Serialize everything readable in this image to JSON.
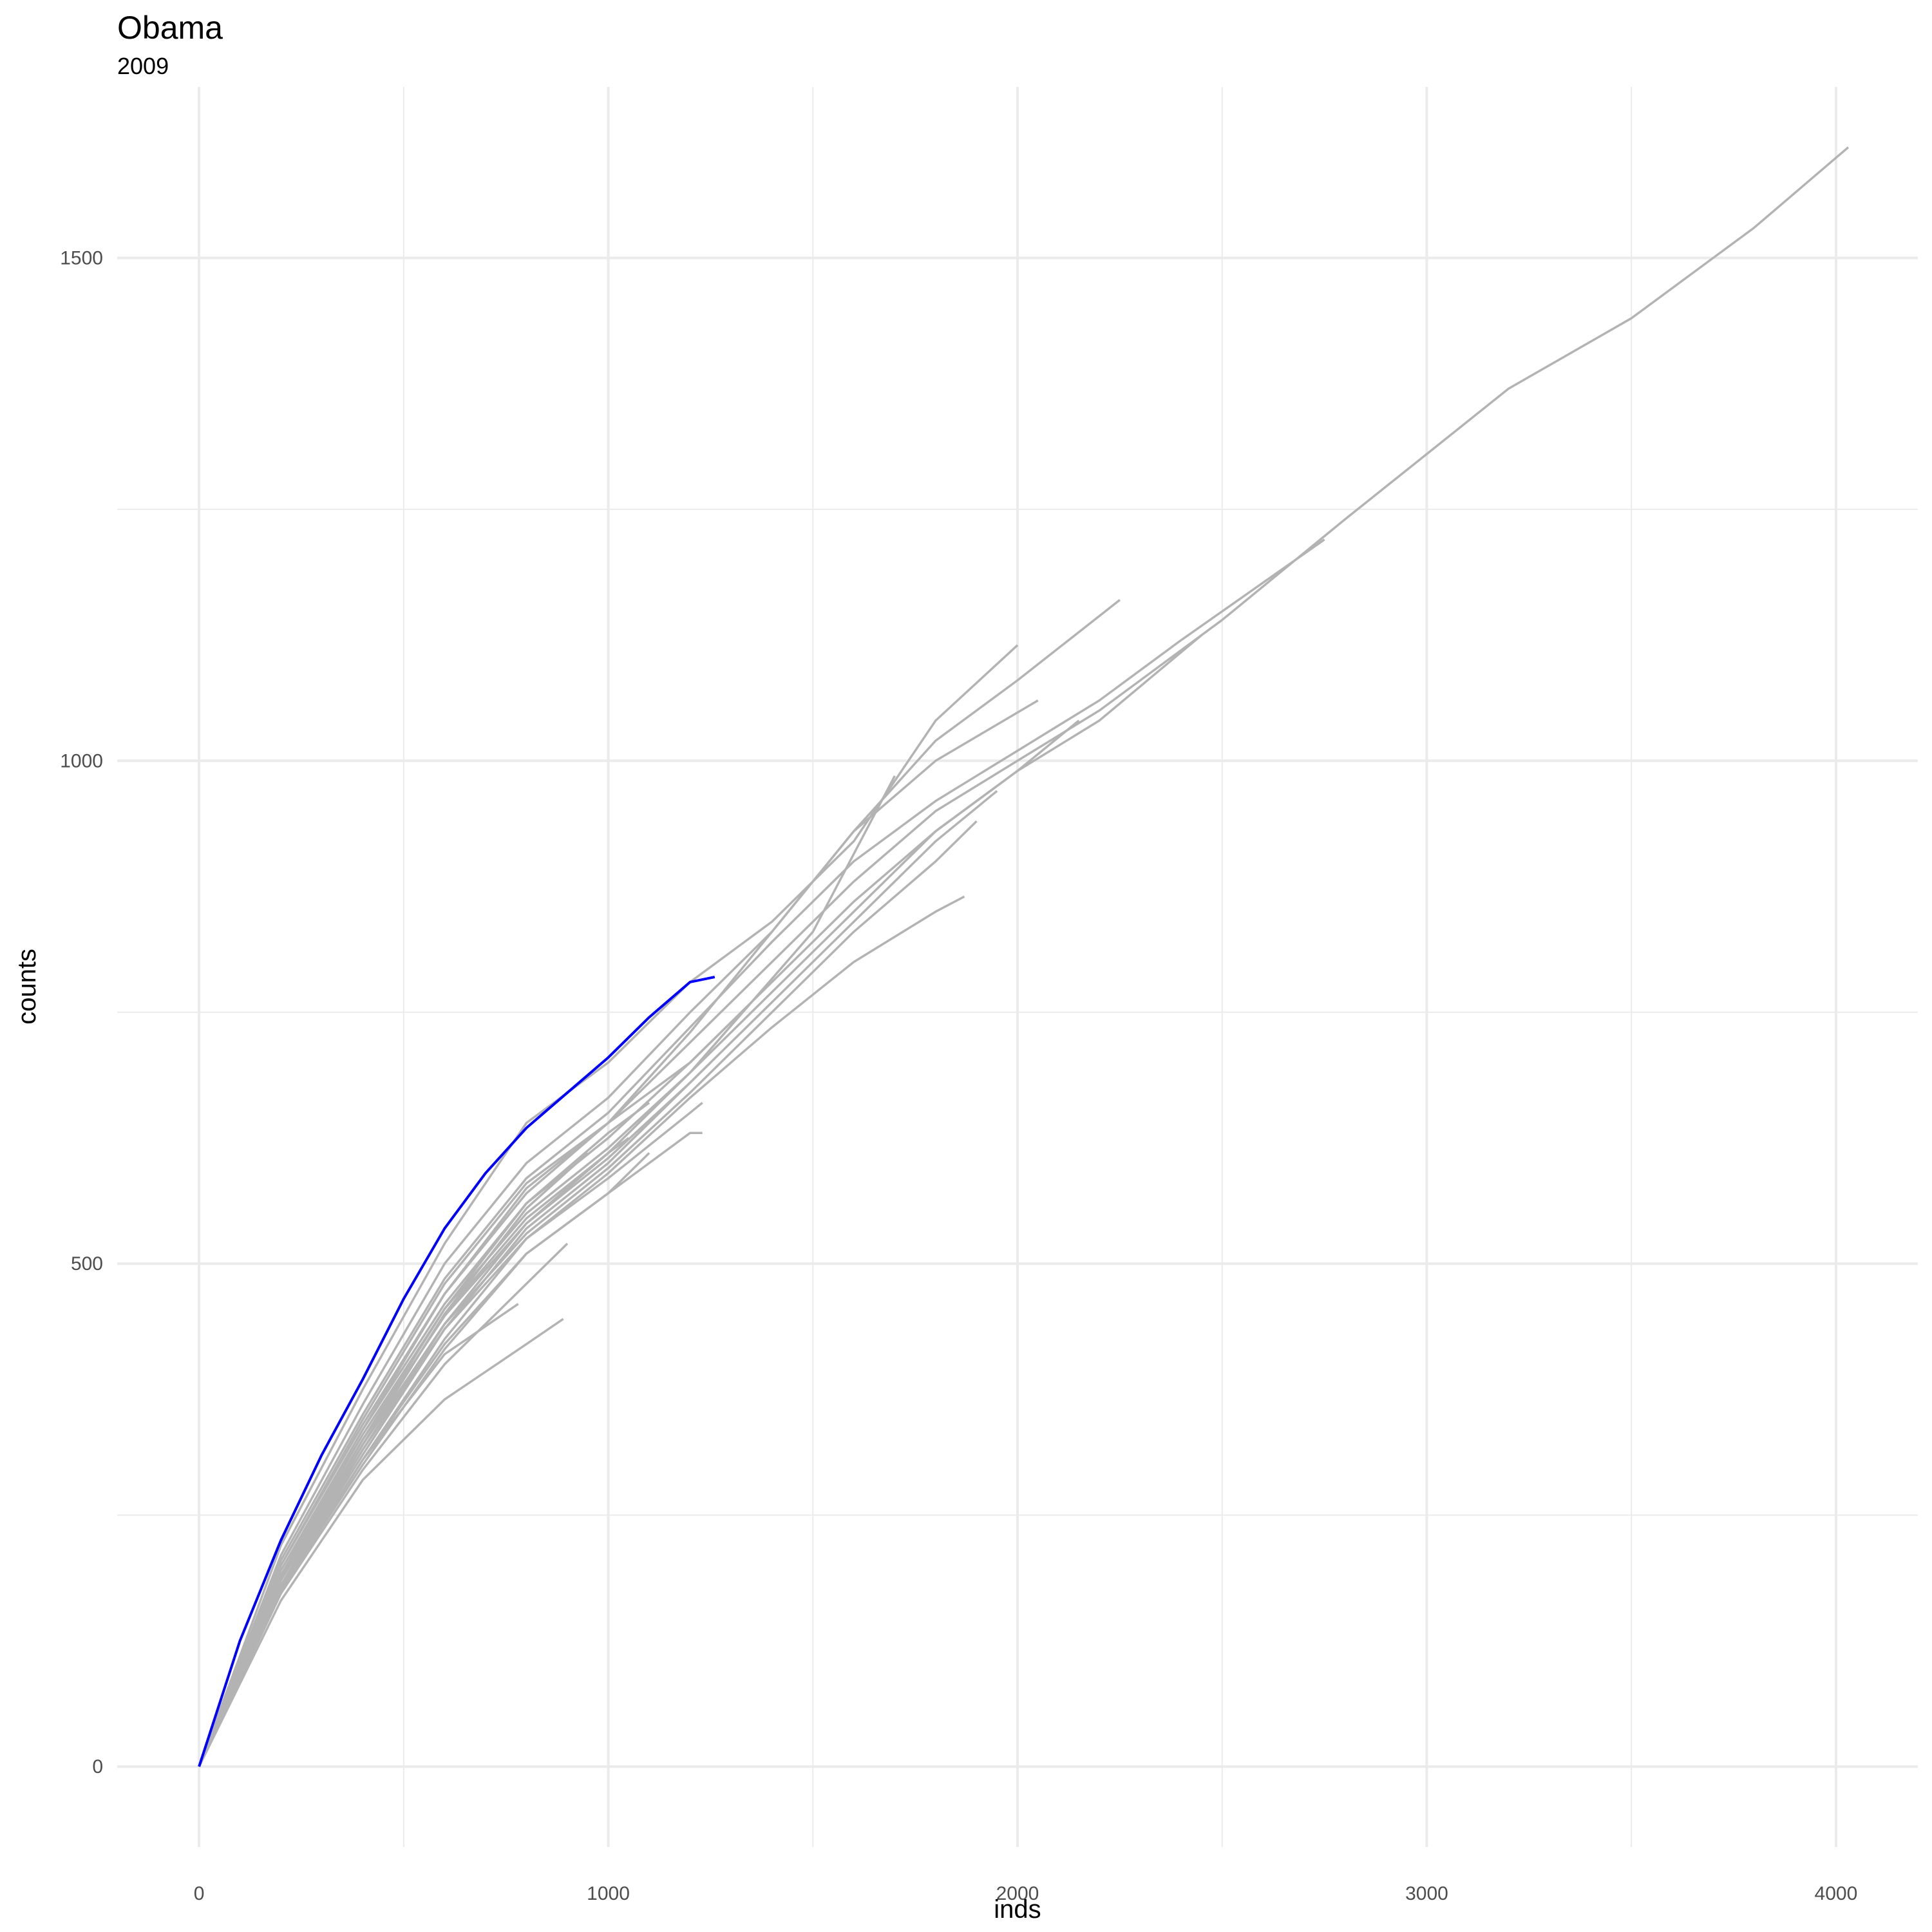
{
  "chart_data": {
    "type": "line",
    "title": "Obama",
    "subtitle": "2009",
    "xlabel": "inds",
    "ylabel": "counts",
    "xlim": [
      -200,
      4200
    ],
    "ylim": [
      -80,
      1670
    ],
    "x_ticks": [
      0,
      1000,
      2000,
      3000,
      4000
    ],
    "y_ticks": [
      0,
      500,
      1000,
      1500
    ],
    "x_minor_ticks": [
      500,
      1500,
      2500,
      3500
    ],
    "y_minor_ticks": [
      250,
      750,
      1250
    ],
    "grid": true,
    "legend": "none",
    "colors": {
      "highlight": "#0000ff",
      "background_series": "#b3b3b3",
      "grid": "#ebebeb"
    },
    "highlight_series": {
      "color": "#0000ff",
      "points": [
        [
          0,
          0
        ],
        [
          100,
          125
        ],
        [
          200,
          225
        ],
        [
          300,
          310
        ],
        [
          400,
          385
        ],
        [
          500,
          465
        ],
        [
          600,
          535
        ],
        [
          700,
          590
        ],
        [
          800,
          635
        ],
        [
          900,
          670
        ],
        [
          1000,
          705
        ],
        [
          1100,
          745
        ],
        [
          1200,
          780
        ],
        [
          1260,
          785
        ]
      ]
    },
    "series": [
      {
        "points": [
          [
            0,
            0
          ],
          [
            200,
            220
          ],
          [
            400,
            375
          ],
          [
            600,
            520
          ],
          [
            800,
            640
          ],
          [
            1000,
            700
          ],
          [
            1200,
            780
          ],
          [
            1400,
            840
          ],
          [
            1600,
            920
          ],
          [
            1800,
            1040
          ],
          [
            2000,
            1115
          ]
        ]
      },
      {
        "points": [
          [
            0,
            0
          ],
          [
            200,
            210
          ],
          [
            400,
            360
          ],
          [
            600,
            500
          ],
          [
            800,
            600
          ],
          [
            1000,
            665
          ],
          [
            1200,
            750
          ],
          [
            1400,
            830
          ],
          [
            1600,
            930
          ],
          [
            1800,
            1020
          ],
          [
            2000,
            1080
          ],
          [
            2250,
            1160
          ]
        ]
      },
      {
        "points": [
          [
            0,
            0
          ],
          [
            200,
            200
          ],
          [
            400,
            345
          ],
          [
            600,
            480
          ],
          [
            800,
            580
          ],
          [
            1000,
            640
          ],
          [
            1200,
            730
          ],
          [
            1400,
            830
          ],
          [
            1600,
            930
          ],
          [
            1800,
            1000
          ],
          [
            2050,
            1060
          ]
        ]
      },
      {
        "points": [
          [
            0,
            0
          ],
          [
            200,
            205
          ],
          [
            400,
            350
          ],
          [
            600,
            485
          ],
          [
            800,
            585
          ],
          [
            1000,
            650
          ],
          [
            1200,
            735
          ],
          [
            1400,
            820
          ],
          [
            1600,
            900
          ],
          [
            1800,
            960
          ],
          [
            2000,
            1010
          ],
          [
            2200,
            1060
          ],
          [
            2400,
            1120
          ],
          [
            2750,
            1220
          ]
        ]
      },
      {
        "points": [
          [
            0,
            0
          ],
          [
            200,
            200
          ],
          [
            400,
            340
          ],
          [
            600,
            470
          ],
          [
            800,
            570
          ],
          [
            1000,
            640
          ],
          [
            1200,
            720
          ],
          [
            1400,
            800
          ],
          [
            1600,
            880
          ],
          [
            1800,
            950
          ],
          [
            2000,
            1000
          ],
          [
            2200,
            1050
          ],
          [
            2500,
            1140
          ],
          [
            2800,
            1240
          ],
          [
            3200,
            1370
          ],
          [
            3500,
            1440
          ],
          [
            3800,
            1530
          ],
          [
            4030,
            1610
          ]
        ]
      },
      {
        "points": [
          [
            0,
            0
          ],
          [
            200,
            195
          ],
          [
            400,
            335
          ],
          [
            600,
            460
          ],
          [
            800,
            560
          ],
          [
            1000,
            625
          ],
          [
            1200,
            700
          ],
          [
            1400,
            780
          ],
          [
            1600,
            860
          ],
          [
            1800,
            930
          ],
          [
            2000,
            990
          ],
          [
            2200,
            1040
          ],
          [
            2450,
            1125
          ]
        ]
      },
      {
        "points": [
          [
            0,
            0
          ],
          [
            200,
            190
          ],
          [
            400,
            330
          ],
          [
            600,
            455
          ],
          [
            800,
            550
          ],
          [
            1000,
            615
          ],
          [
            1200,
            690
          ],
          [
            1400,
            770
          ],
          [
            1600,
            850
          ],
          [
            1800,
            930
          ],
          [
            2000,
            990
          ],
          [
            2150,
            1040
          ]
        ]
      },
      {
        "points": [
          [
            0,
            0
          ],
          [
            200,
            188
          ],
          [
            400,
            325
          ],
          [
            600,
            448
          ],
          [
            800,
            540
          ],
          [
            1000,
            605
          ],
          [
            1200,
            680
          ],
          [
            1400,
            760
          ],
          [
            1600,
            840
          ],
          [
            1800,
            920
          ],
          [
            1950,
            970
          ]
        ]
      },
      {
        "points": [
          [
            0,
            0
          ],
          [
            200,
            185
          ],
          [
            400,
            320
          ],
          [
            600,
            440
          ],
          [
            800,
            530
          ],
          [
            1000,
            595
          ],
          [
            1200,
            670
          ],
          [
            1400,
            750
          ],
          [
            1600,
            830
          ],
          [
            1800,
            900
          ],
          [
            1900,
            940
          ]
        ]
      },
      {
        "points": [
          [
            0,
            0
          ],
          [
            200,
            180
          ],
          [
            400,
            315
          ],
          [
            600,
            435
          ],
          [
            800,
            525
          ],
          [
            1000,
            590
          ],
          [
            1200,
            665
          ],
          [
            1400,
            735
          ],
          [
            1600,
            800
          ],
          [
            1800,
            850
          ],
          [
            1870,
            865
          ]
        ]
      },
      {
        "points": [
          [
            0,
            0
          ],
          [
            200,
            190
          ],
          [
            400,
            335
          ],
          [
            600,
            470
          ],
          [
            800,
            575
          ],
          [
            1000,
            640
          ],
          [
            1200,
            700
          ],
          [
            1350,
            760
          ],
          [
            1500,
            830
          ],
          [
            1700,
            985
          ]
        ]
      },
      {
        "points": [
          [
            0,
            0
          ],
          [
            200,
            185
          ],
          [
            400,
            320
          ],
          [
            600,
            450
          ],
          [
            800,
            545
          ],
          [
            1000,
            610
          ],
          [
            1200,
            690
          ],
          [
            1350,
            760
          ]
        ]
      },
      {
        "points": [
          [
            0,
            0
          ],
          [
            200,
            180
          ],
          [
            400,
            310
          ],
          [
            600,
            435
          ],
          [
            800,
            535
          ],
          [
            1000,
            600
          ],
          [
            1200,
            680
          ],
          [
            1250,
            700
          ]
        ]
      },
      {
        "points": [
          [
            0,
            0
          ],
          [
            200,
            178
          ],
          [
            400,
            305
          ],
          [
            600,
            425
          ],
          [
            800,
            525
          ],
          [
            1000,
            585
          ],
          [
            1200,
            650
          ],
          [
            1230,
            660
          ]
        ]
      },
      {
        "points": [
          [
            0,
            0
          ],
          [
            200,
            175
          ],
          [
            400,
            300
          ],
          [
            600,
            415
          ],
          [
            800,
            510
          ],
          [
            1000,
            570
          ],
          [
            1200,
            630
          ],
          [
            1230,
            630
          ]
        ]
      },
      {
        "points": [
          [
            0,
            0
          ],
          [
            200,
            185
          ],
          [
            400,
            325
          ],
          [
            600,
            455
          ],
          [
            800,
            560
          ],
          [
            1000,
            630
          ],
          [
            1100,
            660
          ]
        ]
      },
      {
        "points": [
          [
            0,
            0
          ],
          [
            200,
            180
          ],
          [
            400,
            315
          ],
          [
            600,
            440
          ],
          [
            800,
            540
          ],
          [
            1000,
            610
          ],
          [
            1050,
            625
          ]
        ]
      },
      {
        "points": [
          [
            0,
            0
          ],
          [
            200,
            175
          ],
          [
            400,
            305
          ],
          [
            600,
            420
          ],
          [
            800,
            510
          ],
          [
            1000,
            570
          ],
          [
            1100,
            610
          ]
        ]
      },
      {
        "points": [
          [
            0,
            0
          ],
          [
            200,
            180
          ],
          [
            400,
            320
          ],
          [
            600,
            450
          ],
          [
            800,
            555
          ],
          [
            950,
            610
          ]
        ]
      },
      {
        "points": [
          [
            0,
            0
          ],
          [
            200,
            172
          ],
          [
            400,
            295
          ],
          [
            600,
            400
          ],
          [
            800,
            480
          ],
          [
            900,
            520
          ]
        ]
      },
      {
        "points": [
          [
            0,
            0
          ],
          [
            200,
            176
          ],
          [
            400,
            305
          ],
          [
            600,
            410
          ],
          [
            780,
            460
          ]
        ]
      },
      {
        "points": [
          [
            0,
            0
          ],
          [
            200,
            165
          ],
          [
            400,
            285
          ],
          [
            600,
            365
          ],
          [
            800,
            420
          ],
          [
            890,
            445
          ]
        ]
      }
    ]
  }
}
